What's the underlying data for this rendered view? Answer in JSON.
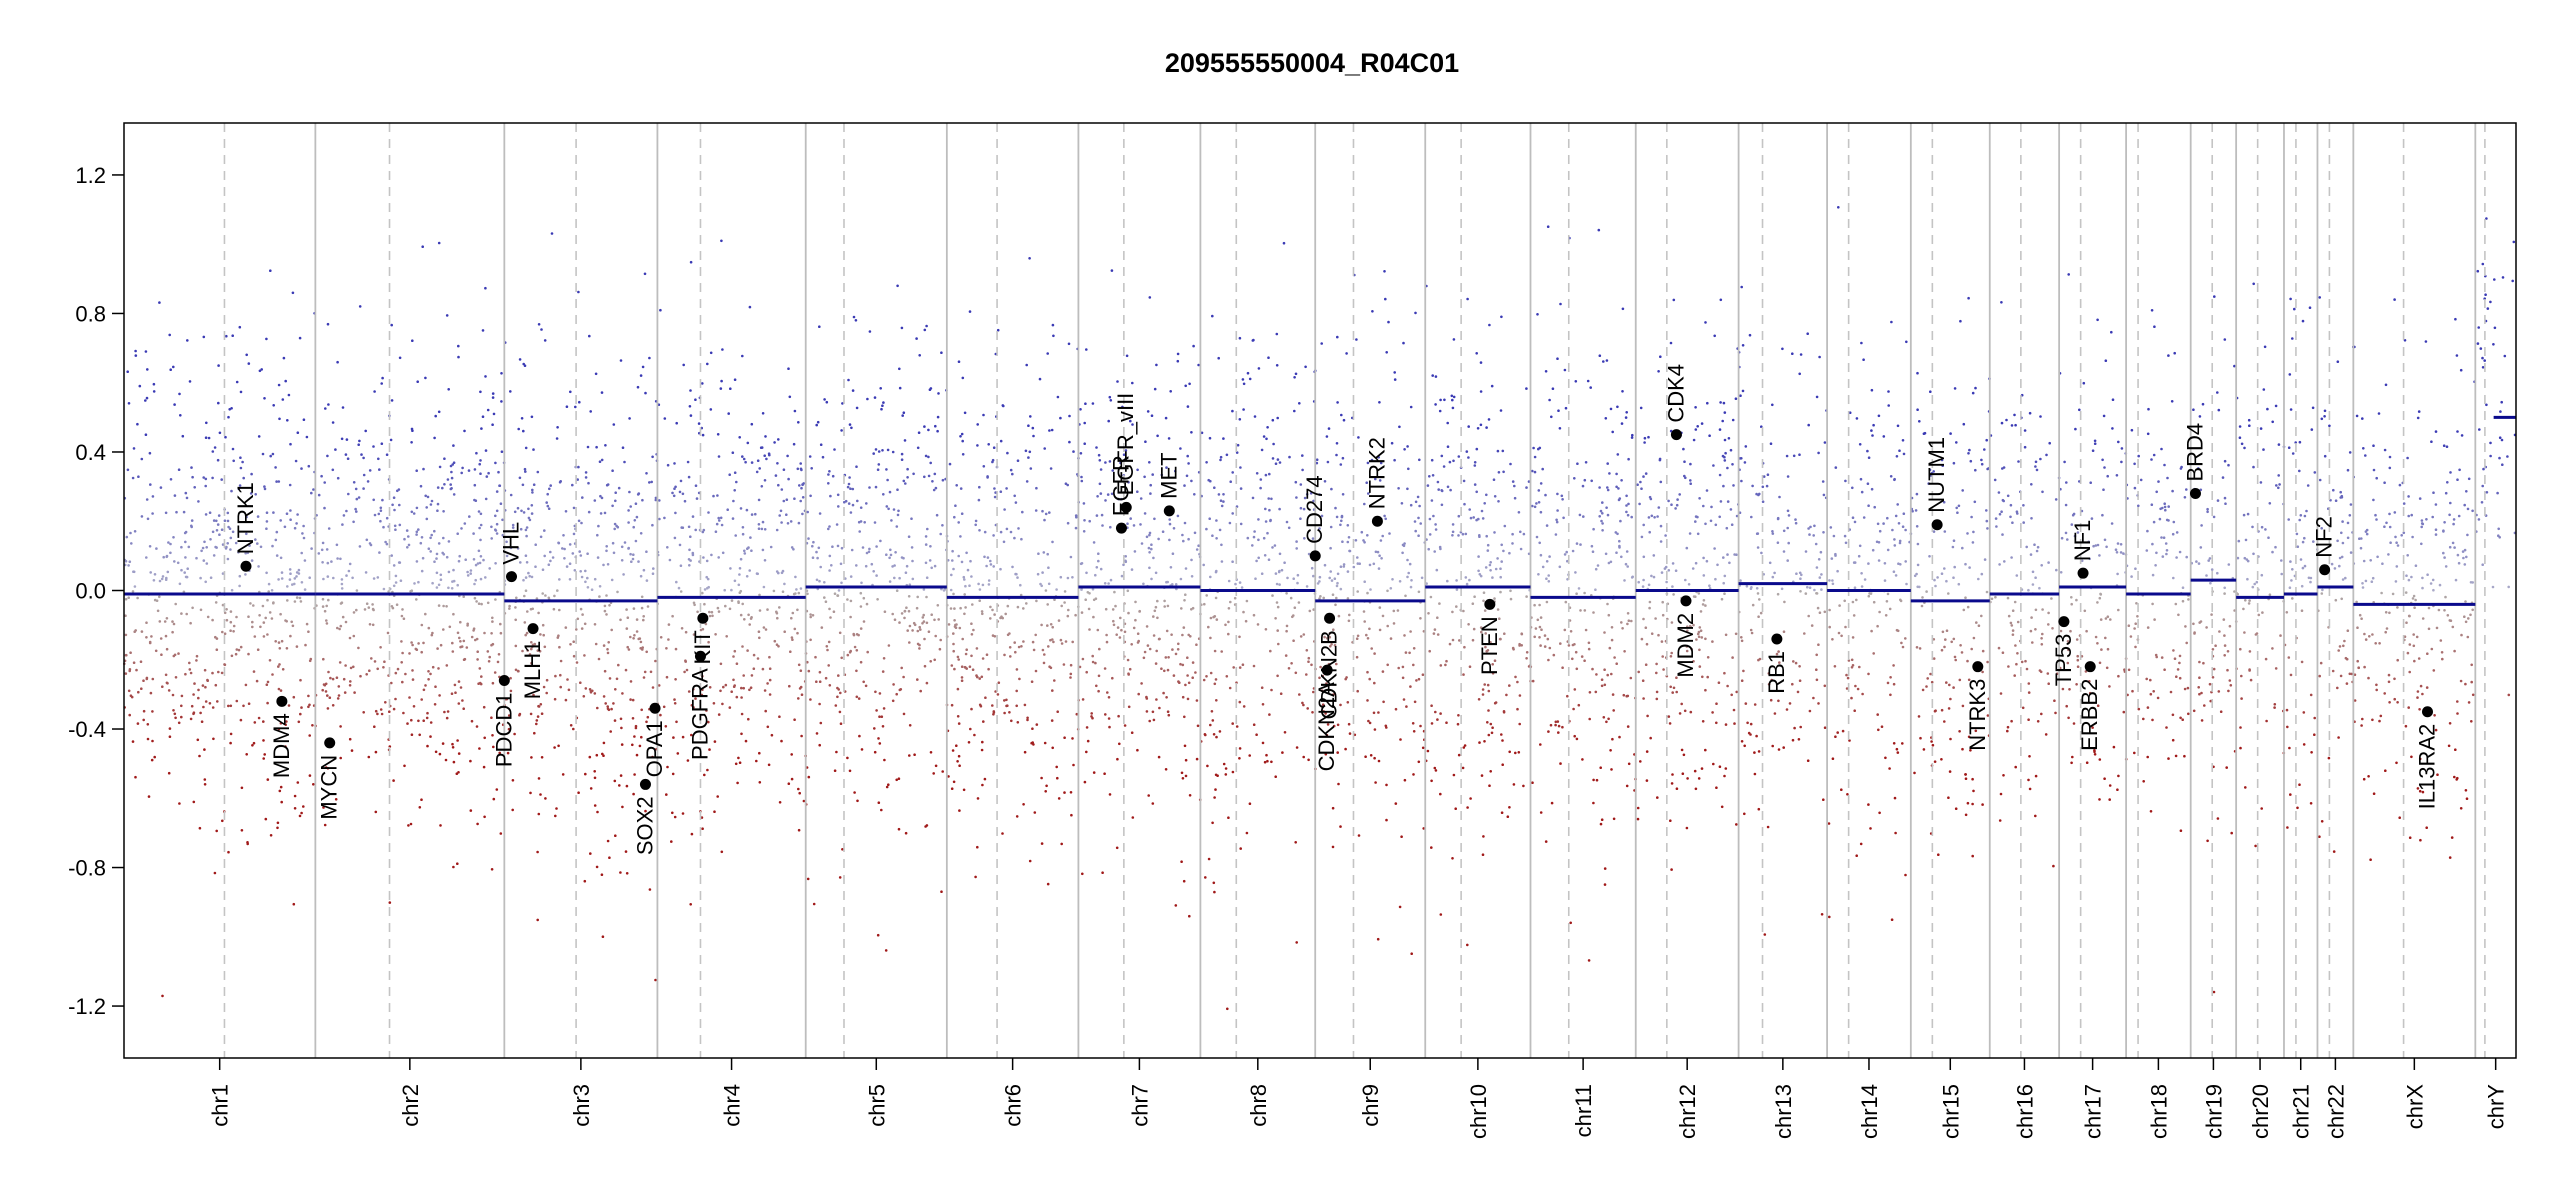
{
  "chart_data": {
    "type": "scatter",
    "title": "209555550004_R04C01",
    "xlabel": "",
    "ylabel": "",
    "ylim": [
      -1.35,
      1.35
    ],
    "yticks": [
      "1.2",
      "0.8",
      "0.4",
      "0.0",
      "-0.4",
      "-0.8",
      "-1.2"
    ],
    "ytick_values": [
      1.2,
      0.8,
      0.4,
      0.0,
      -0.4,
      -0.8,
      -1.2
    ],
    "point_colors": {
      "gain": "#3a3ab0",
      "loss": "#a01818",
      "neutral": "#9a9a9a"
    },
    "segment_color": "#0a0a8c",
    "chromosomes": [
      {
        "name": "chr1",
        "start": 0.0,
        "end": 0.08,
        "centromere": 0.042,
        "segment": -0.01,
        "density": 1.0
      },
      {
        "name": "chr2",
        "start": 0.08,
        "end": 0.159,
        "centromere": 0.111,
        "segment": -0.01,
        "density": 1.0
      },
      {
        "name": "chr3",
        "start": 0.159,
        "end": 0.223,
        "centromere": 0.189,
        "segment": -0.03,
        "density": 1.0
      },
      {
        "name": "chr4",
        "start": 0.223,
        "end": 0.285,
        "centromere": 0.241,
        "segment": -0.02,
        "density": 0.9
      },
      {
        "name": "chr5",
        "start": 0.285,
        "end": 0.344,
        "centromere": 0.301,
        "segment": 0.01,
        "density": 0.9
      },
      {
        "name": "chr6",
        "start": 0.344,
        "end": 0.399,
        "centromere": 0.365,
        "segment": -0.02,
        "density": 0.9
      },
      {
        "name": "chr7",
        "start": 0.399,
        "end": 0.45,
        "centromere": 0.418,
        "segment": 0.01,
        "density": 0.9
      },
      {
        "name": "chr8",
        "start": 0.45,
        "end": 0.498,
        "centromere": 0.465,
        "segment": 0.0,
        "density": 0.8
      },
      {
        "name": "chr9",
        "start": 0.498,
        "end": 0.544,
        "centromere": 0.514,
        "segment": -0.03,
        "density": 0.8
      },
      {
        "name": "chr10",
        "start": 0.544,
        "end": 0.588,
        "centromere": 0.559,
        "segment": 0.01,
        "density": 0.8
      },
      {
        "name": "chr11",
        "start": 0.588,
        "end": 0.632,
        "centromere": 0.604,
        "segment": -0.02,
        "density": 0.8
      },
      {
        "name": "chr12",
        "start": 0.632,
        "end": 0.675,
        "centromere": 0.645,
        "segment": 0.0,
        "density": 0.8
      },
      {
        "name": "chr13",
        "start": 0.675,
        "end": 0.712,
        "centromere": 0.685,
        "segment": 0.02,
        "density": 0.6
      },
      {
        "name": "chr14",
        "start": 0.712,
        "end": 0.747,
        "centromere": 0.721,
        "segment": 0.0,
        "density": 0.6
      },
      {
        "name": "chr15",
        "start": 0.747,
        "end": 0.78,
        "centromere": 0.756,
        "segment": -0.03,
        "density": 0.6
      },
      {
        "name": "chr16",
        "start": 0.78,
        "end": 0.809,
        "centromere": 0.793,
        "segment": -0.01,
        "density": 0.5
      },
      {
        "name": "chr17",
        "start": 0.809,
        "end": 0.837,
        "centromere": 0.818,
        "segment": 0.01,
        "density": 0.5
      },
      {
        "name": "chr18",
        "start": 0.837,
        "end": 0.864,
        "centromere": 0.842,
        "segment": -0.01,
        "density": 0.5
      },
      {
        "name": "chr19",
        "start": 0.864,
        "end": 0.883,
        "centromere": 0.873,
        "segment": 0.03,
        "density": 0.4
      },
      {
        "name": "chr20",
        "start": 0.883,
        "end": 0.903,
        "centromere": 0.892,
        "segment": -0.02,
        "density": 0.4
      },
      {
        "name": "chr21",
        "start": 0.903,
        "end": 0.917,
        "centromere": 0.908,
        "segment": -0.01,
        "density": 0.3
      },
      {
        "name": "chr22",
        "start": 0.917,
        "end": 0.932,
        "centromere": 0.922,
        "segment": 0.01,
        "density": 0.3
      },
      {
        "name": "chrX",
        "start": 0.932,
        "end": 0.983,
        "centromere": 0.953,
        "segment": -0.04,
        "density": 0.7
      },
      {
        "name": "chrY",
        "start": 0.983,
        "end": 1.0,
        "centromere": 0.987,
        "segment": 0.5,
        "density": 0.15
      }
    ],
    "genes": [
      {
        "name": "NTRK1",
        "x": 0.051,
        "value": 0.07,
        "label_side": "up"
      },
      {
        "name": "MDM4",
        "x": 0.066,
        "value": -0.32,
        "label_side": "down"
      },
      {
        "name": "MYCN",
        "x": 0.086,
        "value": -0.44,
        "label_side": "down"
      },
      {
        "name": "VHL",
        "x": 0.162,
        "value": 0.04,
        "label_side": "up"
      },
      {
        "name": "PDCD1",
        "x": 0.159,
        "value": -0.26,
        "label_side": "down"
      },
      {
        "name": "MLH1",
        "x": 0.171,
        "value": -0.11,
        "label_side": "down"
      },
      {
        "name": "SOX2",
        "x": 0.218,
        "value": -0.56,
        "label_side": "down"
      },
      {
        "name": "OPA1",
        "x": 0.222,
        "value": -0.34,
        "label_side": "down"
      },
      {
        "name": "PDGFRA",
        "x": 0.241,
        "value": -0.19,
        "label_side": "down"
      },
      {
        "name": "KIT",
        "x": 0.242,
        "value": -0.08,
        "label_side": "down"
      },
      {
        "name": "EGFR",
        "x": 0.417,
        "value": 0.18,
        "label_side": "up"
      },
      {
        "name": "EGFR_vIII",
        "x": 0.419,
        "value": 0.24,
        "label_side": "up"
      },
      {
        "name": "MET",
        "x": 0.437,
        "value": 0.23,
        "label_side": "up"
      },
      {
        "name": "CD274",
        "x": 0.498,
        "value": 0.1,
        "label_side": "up"
      },
      {
        "name": "CDKN2A",
        "x": 0.503,
        "value": -0.23,
        "label_side": "down"
      },
      {
        "name": "CDKN2B",
        "x": 0.504,
        "value": -0.08,
        "label_side": "down"
      },
      {
        "name": "NTRK2",
        "x": 0.524,
        "value": 0.2,
        "label_side": "up"
      },
      {
        "name": "PTEN",
        "x": 0.571,
        "value": -0.04,
        "label_side": "down"
      },
      {
        "name": "CDK4",
        "x": 0.649,
        "value": 0.45,
        "label_side": "up"
      },
      {
        "name": "MDM2",
        "x": 0.653,
        "value": -0.03,
        "label_side": "down"
      },
      {
        "name": "RB1",
        "x": 0.691,
        "value": -0.14,
        "label_side": "down"
      },
      {
        "name": "NUTM1",
        "x": 0.758,
        "value": 0.19,
        "label_side": "up"
      },
      {
        "name": "NTRK3",
        "x": 0.775,
        "value": -0.22,
        "label_side": "down"
      },
      {
        "name": "TP53",
        "x": 0.811,
        "value": -0.09,
        "label_side": "down"
      },
      {
        "name": "NF1",
        "x": 0.819,
        "value": 0.05,
        "label_side": "up"
      },
      {
        "name": "ERBB2",
        "x": 0.822,
        "value": -0.22,
        "label_side": "down"
      },
      {
        "name": "BRD4",
        "x": 0.866,
        "value": 0.28,
        "label_side": "up"
      },
      {
        "name": "NF2",
        "x": 0.92,
        "value": 0.06,
        "label_side": "up"
      },
      {
        "name": "IL13RA2",
        "x": 0.963,
        "value": -0.35,
        "label_side": "down"
      }
    ],
    "grid": false,
    "legend": "none"
  }
}
